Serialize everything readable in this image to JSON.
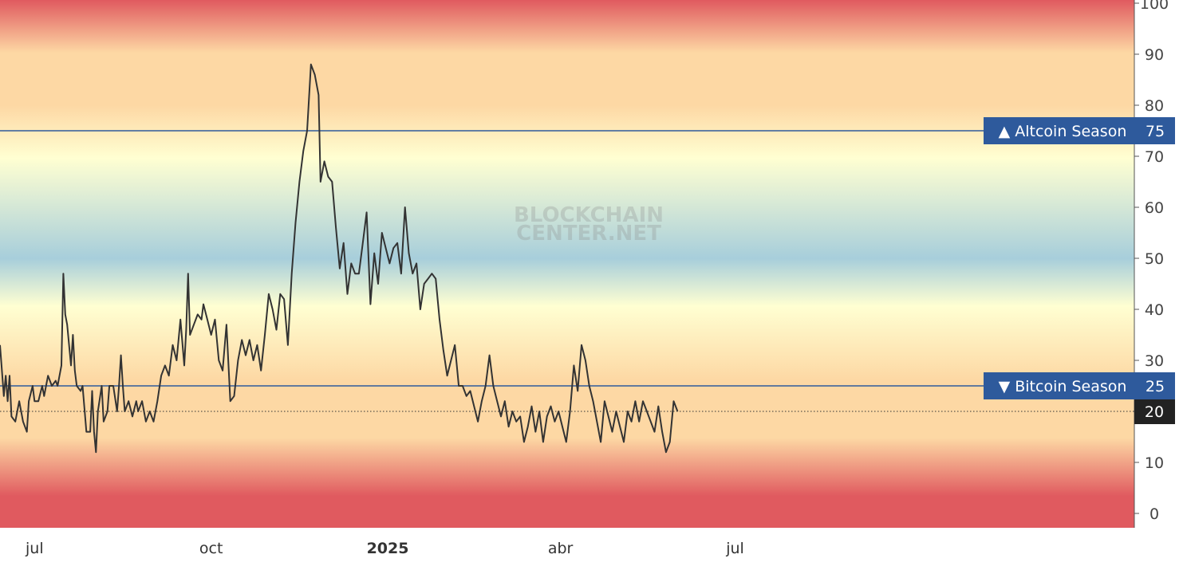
{
  "chart_data": {
    "type": "line",
    "watermark": [
      "BLOCKCHAIN",
      "CENTER.NET"
    ],
    "ylim": [
      0,
      100
    ],
    "y_ticks": [
      0,
      10,
      20,
      30,
      40,
      50,
      60,
      70,
      80,
      90,
      100
    ],
    "x_ticks": [
      {
        "label": "jul",
        "date": "2024-07-01",
        "bold": false
      },
      {
        "label": "oct",
        "date": "2024-10-01",
        "bold": false
      },
      {
        "label": "2025",
        "date": "2025-01-01",
        "bold": true
      },
      {
        "label": "abr",
        "date": "2025-04-01",
        "bold": false
      },
      {
        "label": "jul",
        "date": "2025-07-01",
        "bold": false
      }
    ],
    "xlim": [
      "2024-06-13",
      "2026-01-25"
    ],
    "reference_lines": [
      {
        "label": "▲ Altcoin Season",
        "value": 75,
        "value_label": "75"
      },
      {
        "label": "▼ Bitcoin Season",
        "value": 25,
        "value_label": "25"
      }
    ],
    "current_value": {
      "value": 20,
      "label": "20"
    },
    "colors": {
      "line": "#333333",
      "reference_line": "#2e5a9c",
      "reference_label_bg": "#2e5a9c",
      "current_label_bg": "#222222",
      "band_red": "#e05a5f",
      "band_peach": "#fdd8a4",
      "band_yellow": "#ffffd2",
      "band_blue": "#a7cedb"
    },
    "series": [
      {
        "values": [
          [
            "2024-06-13",
            33
          ],
          [
            "2024-06-15",
            23
          ],
          [
            "2024-06-16",
            27
          ],
          [
            "2024-06-17",
            22
          ],
          [
            "2024-06-18",
            27
          ],
          [
            "2024-06-19",
            19
          ],
          [
            "2024-06-21",
            18
          ],
          [
            "2024-06-23",
            22
          ],
          [
            "2024-06-25",
            18
          ],
          [
            "2024-06-26",
            17
          ],
          [
            "2024-06-27",
            16
          ],
          [
            "2024-06-28",
            22
          ],
          [
            "2024-06-30",
            25
          ],
          [
            "2024-07-01",
            22
          ],
          [
            "2024-07-03",
            22
          ],
          [
            "2024-07-05",
            25
          ],
          [
            "2024-07-06",
            23
          ],
          [
            "2024-07-08",
            27
          ],
          [
            "2024-07-10",
            25
          ],
          [
            "2024-07-12",
            26
          ],
          [
            "2024-07-13",
            25
          ],
          [
            "2024-07-15",
            29
          ],
          [
            "2024-07-16",
            47
          ],
          [
            "2024-07-17",
            39
          ],
          [
            "2024-07-18",
            37
          ],
          [
            "2024-07-19",
            33
          ],
          [
            "2024-07-20",
            29
          ],
          [
            "2024-07-21",
            35
          ],
          [
            "2024-07-22",
            28
          ],
          [
            "2024-07-23",
            25
          ],
          [
            "2024-07-25",
            24
          ],
          [
            "2024-07-26",
            25
          ],
          [
            "2024-07-28",
            16
          ],
          [
            "2024-07-30",
            16
          ],
          [
            "2024-07-31",
            24
          ],
          [
            "2024-08-01",
            16
          ],
          [
            "2024-08-02",
            12
          ],
          [
            "2024-08-03",
            20
          ],
          [
            "2024-08-05",
            25
          ],
          [
            "2024-08-06",
            18
          ],
          [
            "2024-08-08",
            20
          ],
          [
            "2024-08-09",
            25
          ],
          [
            "2024-08-11",
            25
          ],
          [
            "2024-08-13",
            20
          ],
          [
            "2024-08-14",
            25
          ],
          [
            "2024-08-15",
            31
          ],
          [
            "2024-08-16",
            25
          ],
          [
            "2024-08-17",
            20
          ],
          [
            "2024-08-19",
            22
          ],
          [
            "2024-08-21",
            19
          ],
          [
            "2024-08-23",
            22
          ],
          [
            "2024-08-24",
            20
          ],
          [
            "2024-08-26",
            22
          ],
          [
            "2024-08-28",
            18
          ],
          [
            "2024-08-30",
            20
          ],
          [
            "2024-09-01",
            18
          ],
          [
            "2024-09-03",
            22
          ],
          [
            "2024-09-05",
            27
          ],
          [
            "2024-09-07",
            29
          ],
          [
            "2024-09-09",
            27
          ],
          [
            "2024-09-11",
            33
          ],
          [
            "2024-09-13",
            30
          ],
          [
            "2024-09-15",
            38
          ],
          [
            "2024-09-17",
            29
          ],
          [
            "2024-09-18",
            36
          ],
          [
            "2024-09-19",
            47
          ],
          [
            "2024-09-20",
            35
          ],
          [
            "2024-09-22",
            37
          ],
          [
            "2024-09-24",
            39
          ],
          [
            "2024-09-26",
            38
          ],
          [
            "2024-09-27",
            41
          ],
          [
            "2024-09-29",
            38
          ],
          [
            "2024-10-01",
            35
          ],
          [
            "2024-10-03",
            38
          ],
          [
            "2024-10-05",
            30
          ],
          [
            "2024-10-07",
            28
          ],
          [
            "2024-10-09",
            37
          ],
          [
            "2024-10-11",
            22
          ],
          [
            "2024-10-13",
            23
          ],
          [
            "2024-10-15",
            30
          ],
          [
            "2024-10-17",
            34
          ],
          [
            "2024-10-19",
            31
          ],
          [
            "2024-10-21",
            34
          ],
          [
            "2024-10-23",
            30
          ],
          [
            "2024-10-25",
            33
          ],
          [
            "2024-10-27",
            28
          ],
          [
            "2024-10-29",
            35
          ],
          [
            "2024-10-31",
            43
          ],
          [
            "2024-11-02",
            40
          ],
          [
            "2024-11-04",
            36
          ],
          [
            "2024-11-06",
            43
          ],
          [
            "2024-11-08",
            42
          ],
          [
            "2024-11-10",
            33
          ],
          [
            "2024-11-12",
            47
          ],
          [
            "2024-11-14",
            57
          ],
          [
            "2024-11-16",
            65
          ],
          [
            "2024-11-18",
            71
          ],
          [
            "2024-11-20",
            75
          ],
          [
            "2024-11-22",
            88
          ],
          [
            "2024-11-24",
            86
          ],
          [
            "2024-11-26",
            82
          ],
          [
            "2024-11-27",
            65
          ],
          [
            "2024-11-29",
            69
          ],
          [
            "2024-12-01",
            66
          ],
          [
            "2024-12-03",
            65
          ],
          [
            "2024-12-05",
            56
          ],
          [
            "2024-12-07",
            48
          ],
          [
            "2024-12-09",
            53
          ],
          [
            "2024-12-11",
            43
          ],
          [
            "2024-12-13",
            49
          ],
          [
            "2024-12-15",
            47
          ],
          [
            "2024-12-17",
            47
          ],
          [
            "2024-12-19",
            53
          ],
          [
            "2024-12-21",
            59
          ],
          [
            "2024-12-23",
            41
          ],
          [
            "2024-12-25",
            51
          ],
          [
            "2024-12-27",
            45
          ],
          [
            "2024-12-29",
            55
          ],
          [
            "2024-12-31",
            52
          ],
          [
            "2025-01-02",
            49
          ],
          [
            "2025-01-04",
            52
          ],
          [
            "2025-01-06",
            53
          ],
          [
            "2025-01-08",
            47
          ],
          [
            "2025-01-10",
            60
          ],
          [
            "2025-01-12",
            51
          ],
          [
            "2025-01-14",
            47
          ],
          [
            "2025-01-16",
            49
          ],
          [
            "2025-01-18",
            40
          ],
          [
            "2025-01-20",
            45
          ],
          [
            "2025-01-22",
            46
          ],
          [
            "2025-01-24",
            47
          ],
          [
            "2025-01-26",
            46
          ],
          [
            "2025-01-28",
            38
          ],
          [
            "2025-01-30",
            32
          ],
          [
            "2025-02-01",
            27
          ],
          [
            "2025-02-03",
            30
          ],
          [
            "2025-02-05",
            33
          ],
          [
            "2025-02-07",
            25
          ],
          [
            "2025-02-09",
            25
          ],
          [
            "2025-02-11",
            23
          ],
          [
            "2025-02-13",
            24
          ],
          [
            "2025-02-15",
            21
          ],
          [
            "2025-02-17",
            18
          ],
          [
            "2025-02-19",
            22
          ],
          [
            "2025-02-21",
            25
          ],
          [
            "2025-02-23",
            31
          ],
          [
            "2025-02-25",
            25
          ],
          [
            "2025-02-27",
            22
          ],
          [
            "2025-03-01",
            19
          ],
          [
            "2025-03-03",
            22
          ],
          [
            "2025-03-05",
            17
          ],
          [
            "2025-03-07",
            20
          ],
          [
            "2025-03-09",
            18
          ],
          [
            "2025-03-11",
            19
          ],
          [
            "2025-03-13",
            14
          ],
          [
            "2025-03-15",
            17
          ],
          [
            "2025-03-17",
            21
          ],
          [
            "2025-03-19",
            16
          ],
          [
            "2025-03-21",
            20
          ],
          [
            "2025-03-23",
            14
          ],
          [
            "2025-03-25",
            19
          ],
          [
            "2025-03-27",
            21
          ],
          [
            "2025-03-29",
            18
          ],
          [
            "2025-03-31",
            20
          ],
          [
            "2025-04-02",
            17
          ],
          [
            "2025-04-04",
            14
          ],
          [
            "2025-04-06",
            20
          ],
          [
            "2025-04-08",
            29
          ],
          [
            "2025-04-10",
            24
          ],
          [
            "2025-04-12",
            33
          ],
          [
            "2025-04-14",
            30
          ],
          [
            "2025-04-16",
            25
          ],
          [
            "2025-04-18",
            22
          ],
          [
            "2025-04-20",
            18
          ],
          [
            "2025-04-22",
            14
          ],
          [
            "2025-04-24",
            22
          ],
          [
            "2025-04-26",
            19
          ],
          [
            "2025-04-28",
            16
          ],
          [
            "2025-04-30",
            20
          ],
          [
            "2025-05-02",
            17
          ],
          [
            "2025-05-04",
            14
          ],
          [
            "2025-05-06",
            20
          ],
          [
            "2025-05-08",
            18
          ],
          [
            "2025-05-10",
            22
          ],
          [
            "2025-05-12",
            18
          ],
          [
            "2025-05-14",
            22
          ],
          [
            "2025-05-16",
            20
          ],
          [
            "2025-05-18",
            18
          ],
          [
            "2025-05-20",
            16
          ],
          [
            "2025-05-22",
            21
          ],
          [
            "2025-05-24",
            16
          ],
          [
            "2025-05-26",
            12
          ],
          [
            "2025-05-28",
            14
          ],
          [
            "2025-05-30",
            22
          ],
          [
            "2025-06-01",
            20
          ]
        ]
      }
    ]
  }
}
